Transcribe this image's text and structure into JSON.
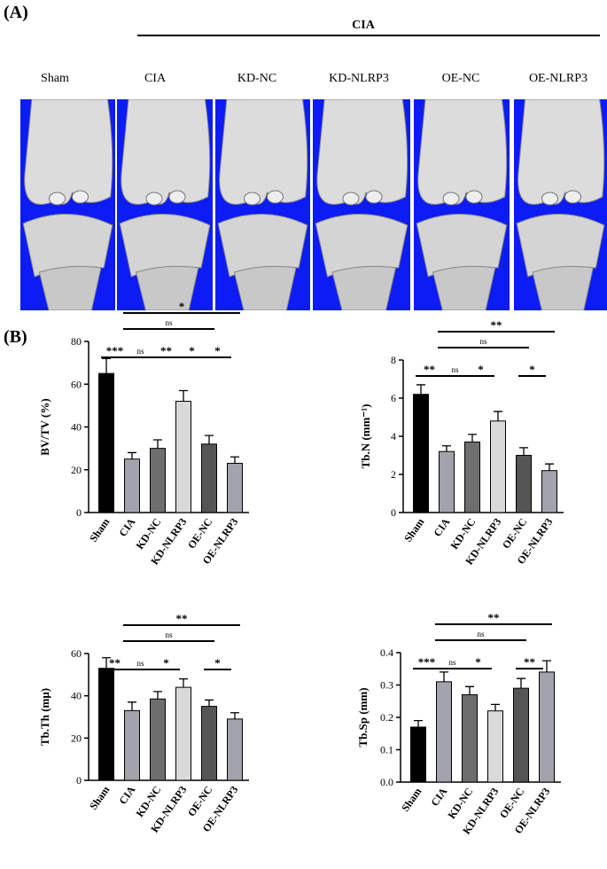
{
  "panel_a": {
    "label": "(A)",
    "group_label": "CIA",
    "columns": [
      "Sham",
      "CIA",
      "KD-NC",
      "KD-NLRP3",
      "OE-NC",
      "OE-NLRP3"
    ]
  },
  "panel_b": {
    "label": "(B)"
  },
  "chart_data": [
    {
      "type": "bar",
      "ylabel": "BV/TV (%)",
      "categories": [
        "Sham",
        "CIA",
        "KD-NC",
        "KD-NLRP3",
        "OE-NC",
        "OE-NLRP3"
      ],
      "values": [
        65,
        25,
        30,
        52,
        32,
        23
      ],
      "errors": [
        7,
        3,
        4,
        5,
        4,
        3
      ],
      "colors": [
        "#000000",
        "#a3a3ab",
        "#6e6e6e",
        "#d9d9d9",
        "#555555",
        "#a3a3ab"
      ],
      "ylim": [
        0,
        80
      ],
      "yticks": [
        0,
        20,
        40,
        60,
        80
      ],
      "annotations": [
        {
          "label": "***",
          "between": [
            "Sham",
            "CIA"
          ]
        },
        {
          "label": "ns",
          "between": [
            "CIA",
            "KD-NC"
          ]
        },
        {
          "label": "**",
          "between": [
            "KD-NC",
            "KD-NLRP3"
          ]
        },
        {
          "label": "*",
          "between": [
            "KD-NLRP3",
            "OE-NC"
          ]
        },
        {
          "label": "*",
          "between": [
            "OE-NC",
            "OE-NLRP3"
          ]
        },
        {
          "label": "ns",
          "between": [
            "CIA",
            "OE-NC"
          ]
        },
        {
          "label": "*",
          "between": [
            "CIA",
            "OE-NLRP3"
          ]
        }
      ]
    },
    {
      "type": "bar",
      "ylabel": "Tb.N (mm⁻¹)",
      "categories": [
        "Sham",
        "CIA",
        "KD-NC",
        "KD-NLRP3",
        "OE-NC",
        "OE-NLRP3"
      ],
      "values": [
        6.2,
        3.2,
        3.7,
        4.8,
        3.0,
        2.2
      ],
      "errors": [
        0.5,
        0.3,
        0.4,
        0.5,
        0.4,
        0.35
      ],
      "colors": [
        "#000000",
        "#a3a3ab",
        "#6e6e6e",
        "#d9d9d9",
        "#555555",
        "#a3a3ab"
      ],
      "ylim": [
        0,
        8
      ],
      "yticks": [
        0,
        2,
        4,
        6,
        8
      ],
      "annotations": [
        {
          "label": "**",
          "between": [
            "Sham",
            "CIA"
          ]
        },
        {
          "label": "ns",
          "between": [
            "CIA",
            "KD-NC"
          ]
        },
        {
          "label": "*",
          "between": [
            "KD-NC",
            "KD-NLRP3"
          ]
        },
        {
          "label": "*",
          "between": [
            "OE-NC",
            "OE-NLRP3"
          ]
        },
        {
          "label": "ns",
          "between": [
            "CIA",
            "OE-NC"
          ]
        },
        {
          "label": "**",
          "between": [
            "CIA",
            "OE-NLRP3"
          ]
        }
      ]
    },
    {
      "type": "bar",
      "ylabel": "Tb.Th (mμ)",
      "categories": [
        "Sham",
        "CIA",
        "KD-NC",
        "KD-NLRP3",
        "OE-NC",
        "OE-NLRP3"
      ],
      "values": [
        53,
        33,
        38.5,
        44,
        35,
        29
      ],
      "errors": [
        5,
        4,
        3.5,
        4,
        3,
        3
      ],
      "colors": [
        "#000000",
        "#a3a3ab",
        "#6e6e6e",
        "#d9d9d9",
        "#555555",
        "#a3a3ab"
      ],
      "ylim": [
        0,
        60
      ],
      "yticks": [
        0,
        20,
        40,
        60
      ],
      "annotations": [
        {
          "label": "**",
          "between": [
            "Sham",
            "CIA"
          ]
        },
        {
          "label": "ns",
          "between": [
            "CIA",
            "KD-NC"
          ]
        },
        {
          "label": "*",
          "between": [
            "KD-NC",
            "KD-NLRP3"
          ]
        },
        {
          "label": "*",
          "between": [
            "OE-NC",
            "OE-NLRP3"
          ]
        },
        {
          "label": "ns",
          "between": [
            "CIA",
            "OE-NC"
          ]
        },
        {
          "label": "**",
          "between": [
            "CIA",
            "OE-NLRP3"
          ]
        }
      ]
    },
    {
      "type": "bar",
      "ylabel": "Tb.Sp (mm)",
      "categories": [
        "Sham",
        "CIA",
        "KD-NC",
        "KD-NLRP3",
        "OE-NC",
        "OE-NLRP3"
      ],
      "values": [
        0.17,
        0.31,
        0.27,
        0.22,
        0.29,
        0.34
      ],
      "errors": [
        0.02,
        0.03,
        0.025,
        0.02,
        0.03,
        0.035
      ],
      "colors": [
        "#000000",
        "#a3a3ab",
        "#6e6e6e",
        "#d9d9d9",
        "#555555",
        "#a3a3ab"
      ],
      "ylim": [
        0,
        0.4
      ],
      "yticks": [
        {
          "value": 0,
          "label": "0.0"
        },
        0.1,
        0.2,
        0.3,
        0.4
      ],
      "annotations": [
        {
          "label": "***",
          "between": [
            "Sham",
            "CIA"
          ]
        },
        {
          "label": "ns",
          "between": [
            "CIA",
            "KD-NC"
          ]
        },
        {
          "label": "*",
          "between": [
            "KD-NC",
            "KD-NLRP3"
          ]
        },
        {
          "label": "**",
          "between": [
            "OE-NC",
            "OE-NLRP3"
          ]
        },
        {
          "label": "ns",
          "between": [
            "CIA",
            "OE-NC"
          ]
        },
        {
          "label": "**",
          "between": [
            "CIA",
            "OE-NLRP3"
          ]
        }
      ]
    }
  ]
}
